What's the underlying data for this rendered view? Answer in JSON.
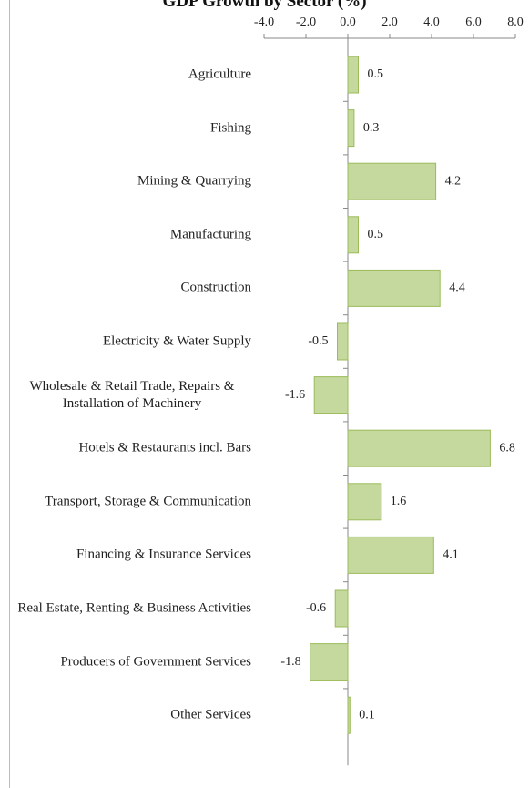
{
  "chart_data": {
    "type": "hbar",
    "title": "GDP Growth by Sector (%)",
    "categories": [
      "Agriculture",
      "Fishing",
      "Mining & Quarrying",
      "Manufacturing",
      "Construction",
      "Electricity & Water Supply",
      "Wholesale & Retail Trade, Repairs & Installation of Machinery",
      "Hotels & Restaurants incl. Bars",
      "Transport, Storage & Communication",
      "Financing & Insurance Services",
      "Real Estate, Renting & Business Activities",
      "Producers of Government Services",
      "Other Services"
    ],
    "values": [
      0.5,
      0.3,
      4.2,
      0.5,
      4.4,
      -0.5,
      -1.6,
      6.8,
      1.6,
      4.1,
      -0.6,
      -1.8,
      0.1
    ],
    "color": "#c5d99f",
    "edge_color": "#9bbb59",
    "xlim": [
      -4,
      8
    ],
    "xticks": [
      {
        "value": -4,
        "label": "-4.0"
      },
      {
        "value": -2,
        "label": "-2.0"
      },
      {
        "value": 0,
        "label": "0.0"
      },
      {
        "value": 2,
        "label": "2.0"
      },
      {
        "value": 4,
        "label": "4.0"
      },
      {
        "value": 6,
        "label": "6.0"
      },
      {
        "value": 8,
        "label": "8.0"
      }
    ]
  }
}
